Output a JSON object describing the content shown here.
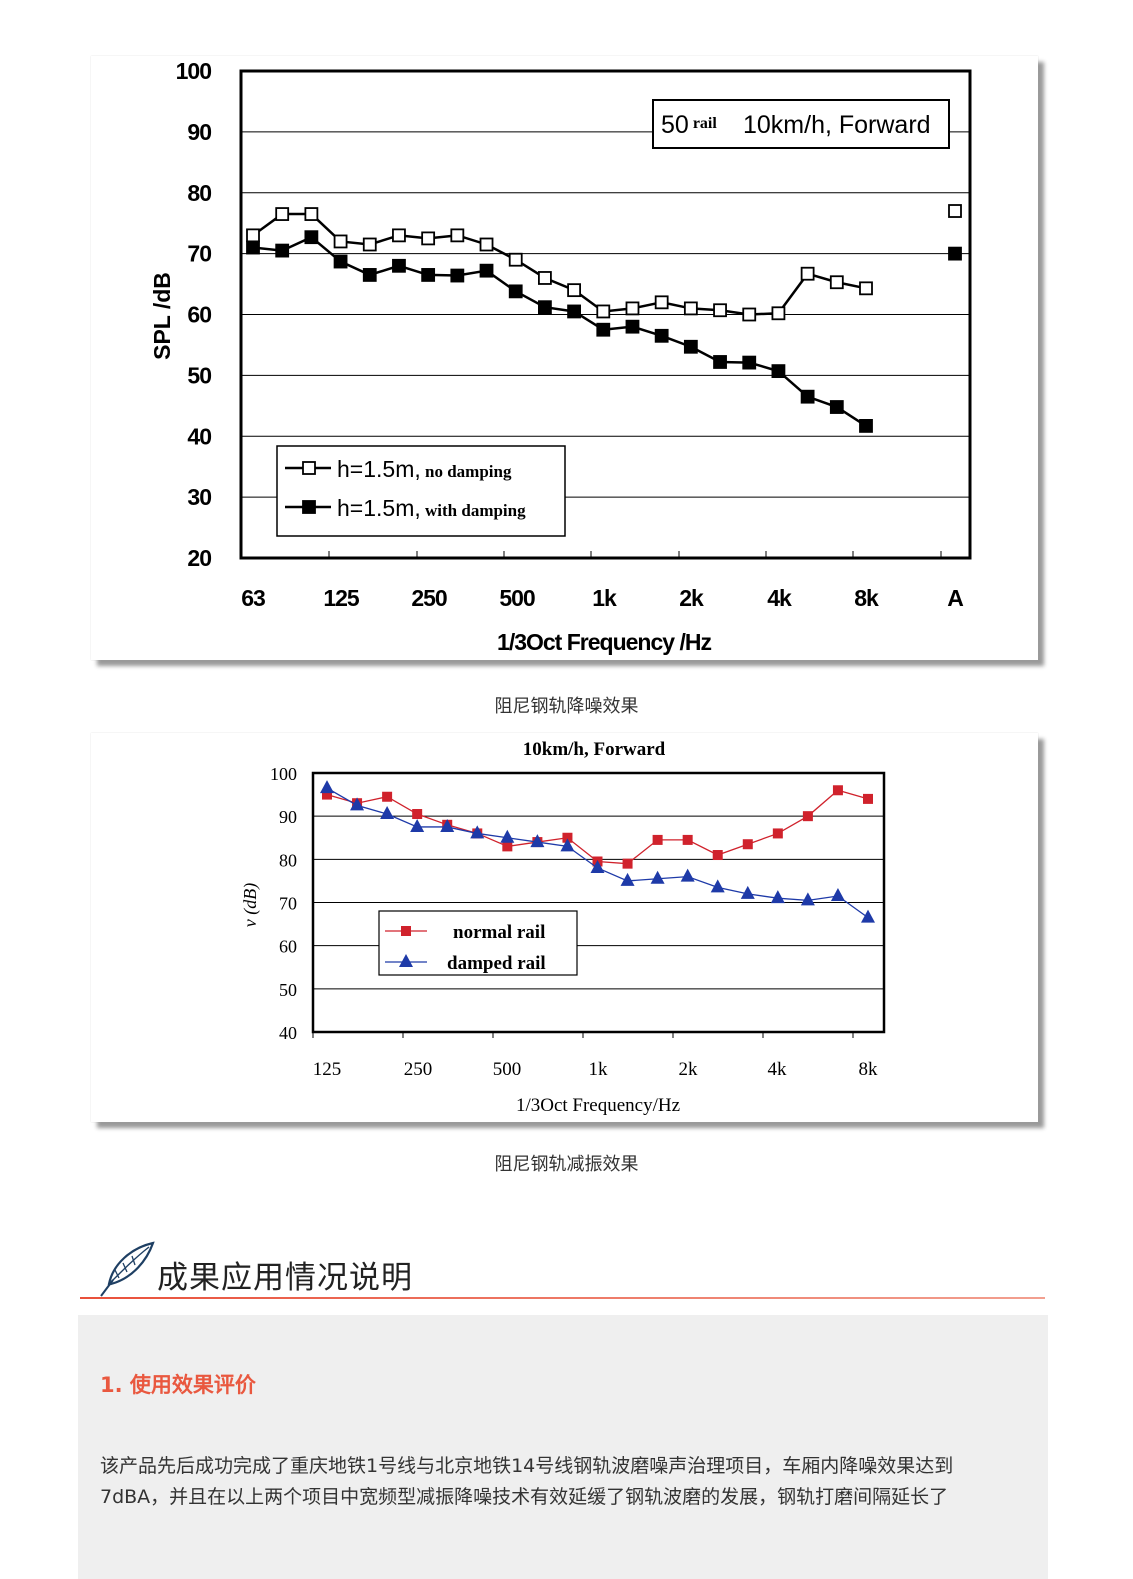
{
  "chart_data": [
    {
      "type": "line",
      "categories": [
        "63",
        "125",
        "250",
        "500",
        "1k",
        "2k",
        "4k",
        "8k",
        "A"
      ],
      "x": [
        "63",
        "80",
        "100",
        "125",
        "160",
        "200",
        "250",
        "315",
        "400",
        "500",
        "630",
        "800",
        "1k",
        "1.25k",
        "1.6k",
        "2k",
        "2.5k",
        "3.15k",
        "4k",
        "5k",
        "6.3k",
        "8k"
      ],
      "series": [
        {
          "name": "h=1.5m, no damping",
          "values": [
            73,
            76.5,
            76.5,
            72,
            71.5,
            73,
            72.5,
            73,
            71.5,
            69,
            66,
            64,
            60.5,
            61,
            62,
            61,
            60.7,
            60,
            60.2,
            66.7,
            65.3,
            64.3
          ],
          "A_value": 77
        },
        {
          "name": "h=1.5m,with damping",
          "values": [
            71,
            70.5,
            72.7,
            68.7,
            66.5,
            68,
            66.5,
            66.4,
            67.2,
            63.8,
            61.2,
            60.5,
            57.5,
            58,
            56.5,
            54.7,
            52.2,
            52.1,
            50.7,
            46.5,
            44.8,
            41.7
          ],
          "A_value": 70
        }
      ],
      "ylabel": "SPL /dB",
      "xlabel": "1/3Oct Frequency /Hz",
      "ylim": [
        20,
        100
      ],
      "yticks": [
        100,
        90,
        80,
        70,
        60,
        50,
        40,
        30,
        20
      ],
      "annotation": {
        "big": "50",
        "small": "rail",
        "rest": "10km/h, Forward"
      },
      "legend": [
        {
          "main": "h=1.5m,",
          "sub": "no damping"
        },
        {
          "main": "h=1.5m,",
          "sub": "with damping"
        }
      ],
      "grid": true,
      "legend_position": "bottom-left"
    },
    {
      "type": "line",
      "title": "10km/h, Forward",
      "categories": [
        "125",
        "250",
        "500",
        "1k",
        "2k",
        "4k",
        "8k"
      ],
      "x": [
        "125",
        "160",
        "200",
        "250",
        "315",
        "400",
        "500",
        "630",
        "800",
        "1k",
        "1.25k",
        "1.6k",
        "2k",
        "2.5k",
        "3.15k",
        "4k",
        "5k",
        "6.3k",
        "8k"
      ],
      "series": [
        {
          "name": "normal rail",
          "color": "#d0222c",
          "values": [
            95,
            93,
            94.5,
            90.5,
            88,
            86,
            83,
            84,
            85,
            79.5,
            79,
            84.5,
            84.5,
            81,
            83.5,
            86,
            90,
            96,
            94
          ]
        },
        {
          "name": "damped rail",
          "color": "#1e3aa8",
          "values": [
            96.5,
            92.5,
            90.5,
            87.5,
            87.5,
            86,
            85,
            84,
            83,
            78,
            75,
            75.5,
            76,
            73.5,
            72,
            71,
            70.5,
            71.5,
            66.5
          ]
        }
      ],
      "ylabel": "v (dB)",
      "xlabel": "1/3Oct Frequency/Hz",
      "ylim": [
        40,
        100
      ],
      "yticks": [
        100,
        90,
        80,
        70,
        60,
        50,
        40
      ],
      "grid": true,
      "legend_position": "center-left"
    }
  ],
  "captions": {
    "fig1": "阻尼钢轨降噪效果",
    "fig2": "阻尼钢轨减振效果"
  },
  "section": {
    "icon": "pen-icon",
    "title": "成果应用情况说明",
    "subhead": "1. 使用效果评价",
    "lines": [
      "该产品先后成功完成了重庆地铁1号线与北京地铁14号线钢轨波磨噪声治理项目，车厢内降噪效果达到",
      "7dBA，并且在以上两个项目中宽频型减振降噪技术有效延缓了钢轨波磨的发展，钢轨打磨间隔延长了"
    ]
  },
  "colors": {
    "accent": "#e9583f",
    "panel_bg": "#efefef"
  }
}
